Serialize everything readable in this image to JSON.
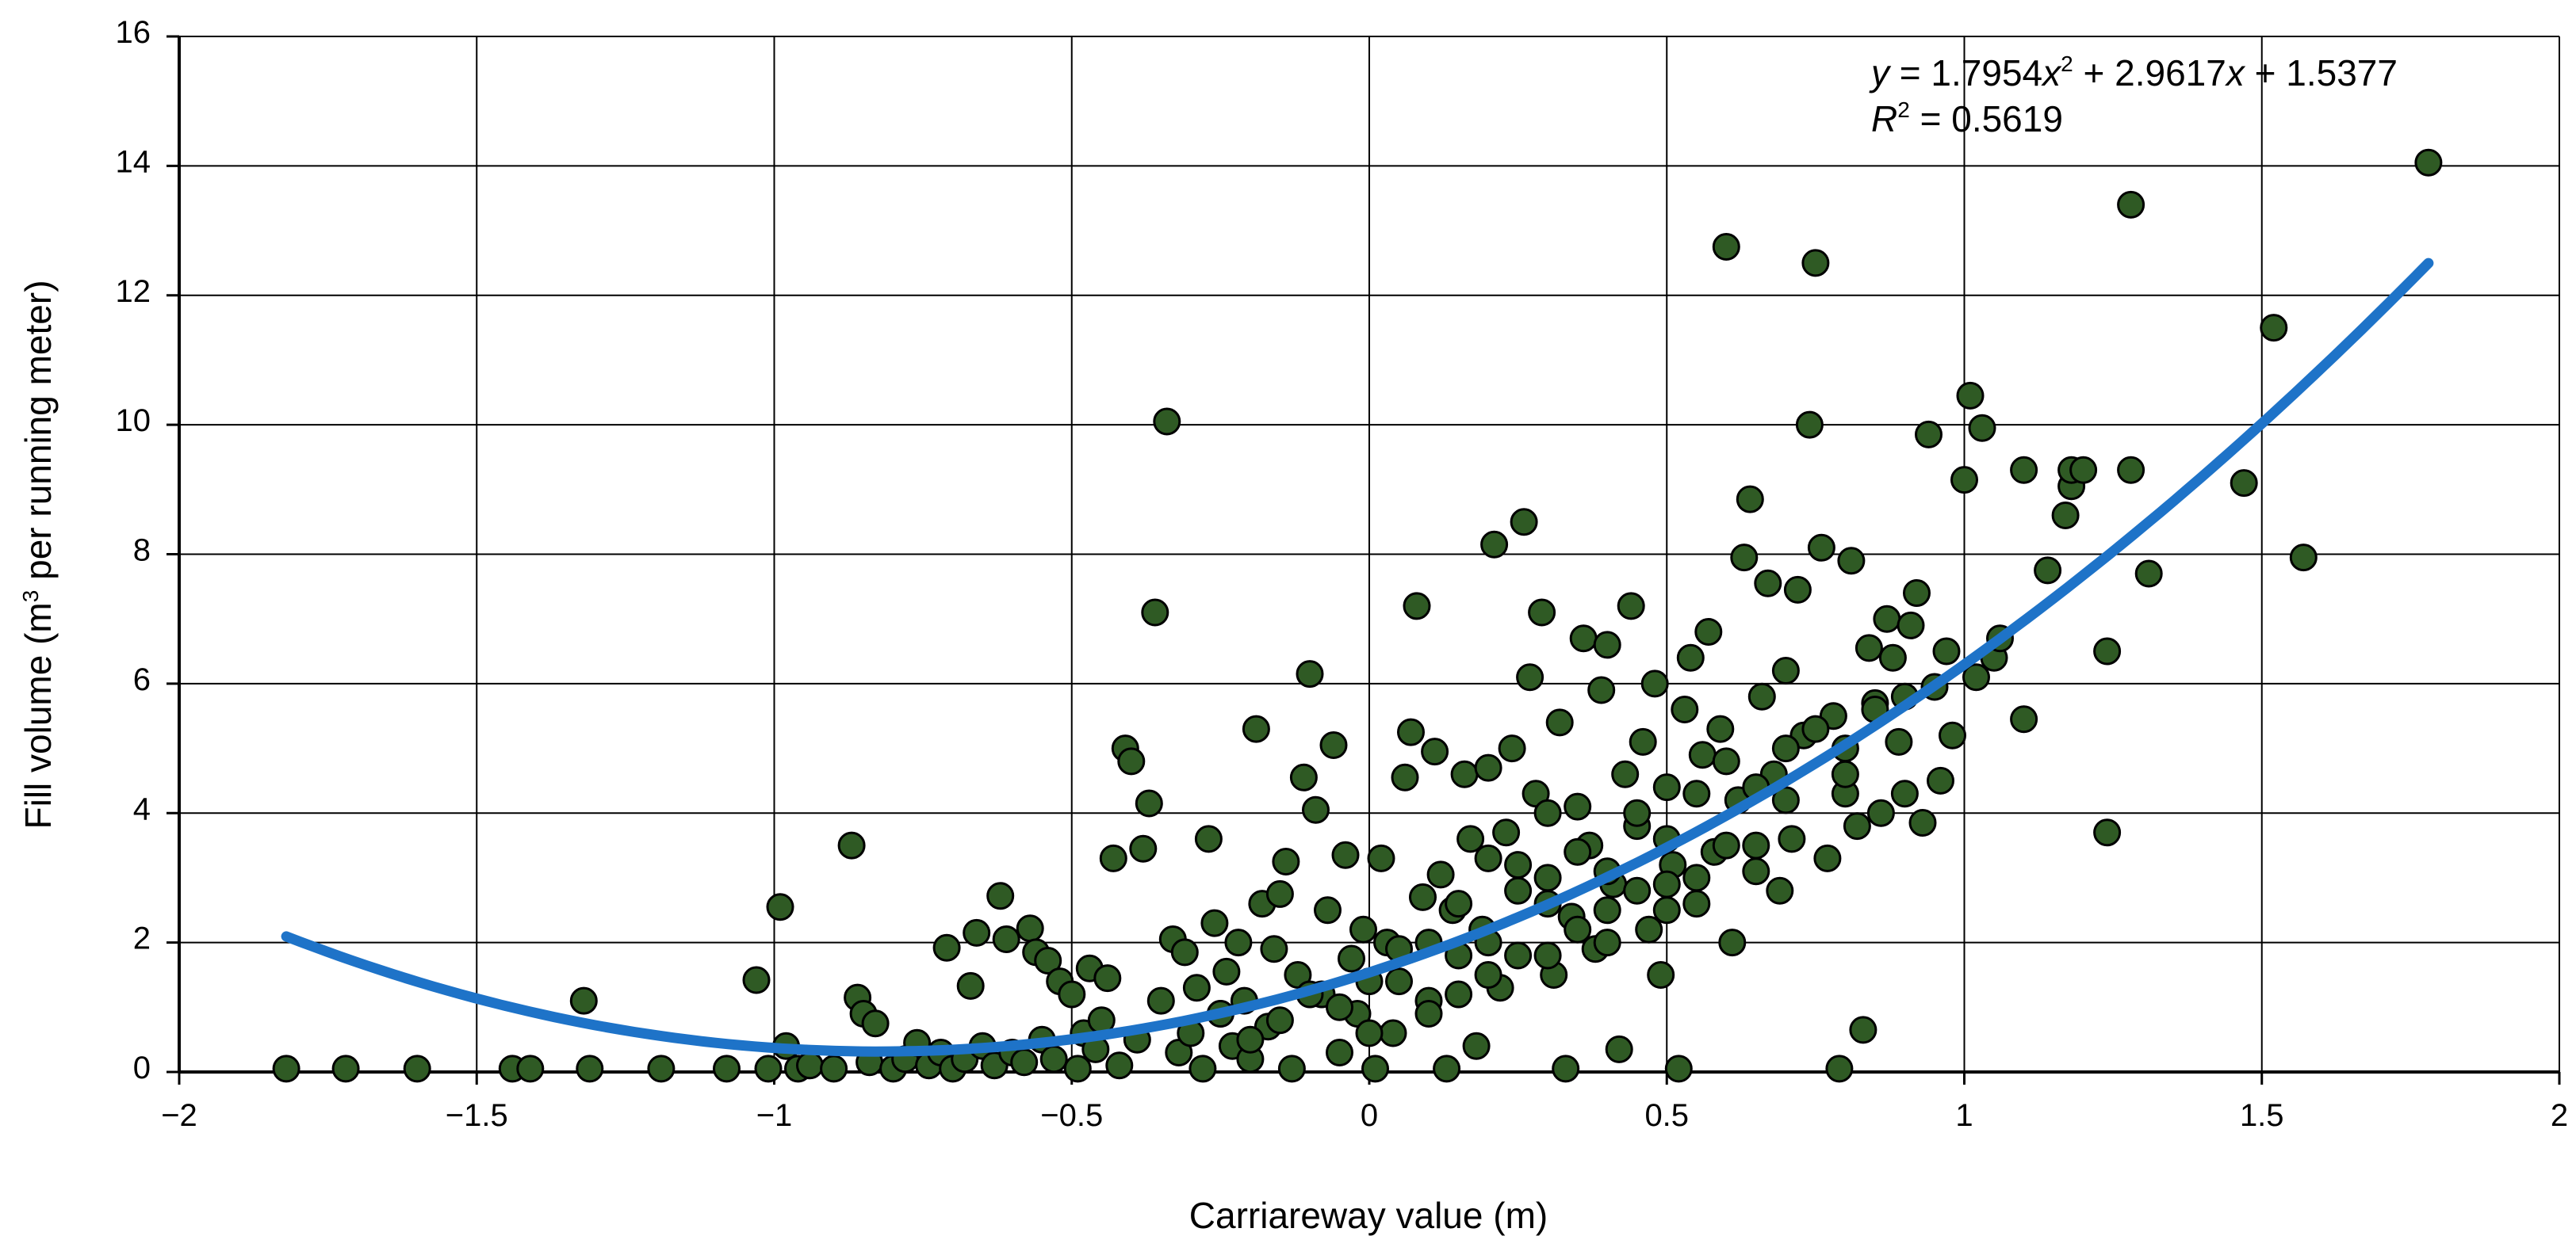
{
  "chart_data": {
    "type": "scatter",
    "title": "",
    "xlabel": "Carriareway value (m)",
    "ylabel_parts": [
      "Fill volume (m",
      "3",
      " per running meter)"
    ],
    "xlim": [
      -2,
      2
    ],
    "ylim": [
      0,
      16
    ],
    "x_ticks": [
      -2,
      -1.5,
      -1,
      -0.5,
      0,
      0.5,
      1,
      1.5,
      2
    ],
    "x_tick_labels": [
      "−2",
      "−1.5",
      "−1",
      "−0.5",
      "0",
      "0.5",
      "1",
      "1.5",
      "2"
    ],
    "y_ticks": [
      0,
      2,
      4,
      6,
      8,
      10,
      12,
      14,
      16
    ],
    "y_tick_labels": [
      "0",
      "2",
      "4",
      "6",
      "8",
      "10",
      "12",
      "14",
      "16"
    ],
    "grid": true,
    "legend": "none",
    "colors": {
      "points": "#2f5a24",
      "trendline": "#1e73c8"
    },
    "trendline": {
      "type": "polynomial",
      "coefficients": [
        1.7954,
        2.9617,
        1.5377
      ],
      "x_range": [
        -1.82,
        1.78
      ],
      "equation_parts": [
        "y",
        " = 1.7954",
        "x",
        "2",
        " + 2.9617",
        "x",
        " + 1.5377"
      ],
      "r2_parts": [
        "R",
        "2",
        " = 0.5619"
      ]
    },
    "points": [
      [
        -1.82,
        0.05
      ],
      [
        -1.72,
        0.05
      ],
      [
        -1.6,
        0.05
      ],
      [
        -1.44,
        0.05
      ],
      [
        -1.41,
        0.05
      ],
      [
        -1.32,
        1.1
      ],
      [
        -1.31,
        0.05
      ],
      [
        -1.19,
        0.05
      ],
      [
        -1.08,
        0.05
      ],
      [
        -1.03,
        1.42
      ],
      [
        -1.01,
        0.05
      ],
      [
        -0.99,
        2.55
      ],
      [
        -0.98,
        0.4
      ],
      [
        -0.96,
        0.05
      ],
      [
        -0.94,
        0.1
      ],
      [
        -0.9,
        0.05
      ],
      [
        -0.87,
        3.5
      ],
      [
        -0.86,
        1.15
      ],
      [
        -0.85,
        0.9
      ],
      [
        -0.84,
        0.15
      ],
      [
        -0.83,
        0.75
      ],
      [
        -0.8,
        0.05
      ],
      [
        -0.78,
        0.2
      ],
      [
        -0.76,
        0.45
      ],
      [
        -0.74,
        0.1
      ],
      [
        -0.72,
        0.3
      ],
      [
        -0.71,
        1.92
      ],
      [
        -0.7,
        0.05
      ],
      [
        -0.68,
        0.2
      ],
      [
        -0.67,
        1.33
      ],
      [
        -0.66,
        2.15
      ],
      [
        -0.65,
        0.4
      ],
      [
        -0.63,
        0.1
      ],
      [
        -0.62,
        2.72
      ],
      [
        -0.61,
        2.05
      ],
      [
        -0.6,
        0.3
      ],
      [
        -0.58,
        0.15
      ],
      [
        -0.57,
        2.22
      ],
      [
        -0.56,
        1.85
      ],
      [
        -0.55,
        0.5
      ],
      [
        -0.54,
        1.72
      ],
      [
        -0.53,
        0.2
      ],
      [
        -0.52,
        1.4
      ],
      [
        -0.5,
        1.2
      ],
      [
        -0.49,
        0.05
      ],
      [
        -0.48,
        0.6
      ],
      [
        -0.47,
        1.6
      ],
      [
        -0.46,
        0.35
      ],
      [
        -0.45,
        0.8
      ],
      [
        -0.44,
        1.45
      ],
      [
        -0.43,
        3.3
      ],
      [
        -0.42,
        0.1
      ],
      [
        -0.41,
        5.0
      ],
      [
        -0.4,
        4.8
      ],
      [
        -0.39,
        0.5
      ],
      [
        -0.38,
        3.45
      ],
      [
        -0.37,
        4.15
      ],
      [
        -0.36,
        7.1
      ],
      [
        -0.35,
        1.1
      ],
      [
        -0.34,
        10.05
      ],
      [
        -0.33,
        2.05
      ],
      [
        -0.32,
        0.3
      ],
      [
        -0.31,
        1.85
      ],
      [
        -0.3,
        0.6
      ],
      [
        -0.29,
        1.3
      ],
      [
        -0.28,
        0.05
      ],
      [
        -0.27,
        3.6
      ],
      [
        -0.26,
        2.3
      ],
      [
        -0.25,
        0.9
      ],
      [
        -0.24,
        1.55
      ],
      [
        -0.23,
        0.4
      ],
      [
        -0.22,
        2.0
      ],
      [
        -0.21,
        1.1
      ],
      [
        -0.2,
        0.2
      ],
      [
        -0.19,
        5.3
      ],
      [
        -0.18,
        2.6
      ],
      [
        -0.17,
        0.7
      ],
      [
        -0.16,
        1.9
      ],
      [
        -0.15,
        2.75
      ],
      [
        -0.14,
        3.25
      ],
      [
        -0.13,
        0.05
      ],
      [
        -0.12,
        1.5
      ],
      [
        -0.11,
        4.55
      ],
      [
        -0.1,
        6.15
      ],
      [
        -0.09,
        4.05
      ],
      [
        -0.08,
        1.2
      ],
      [
        -0.07,
        2.5
      ],
      [
        -0.06,
        5.05
      ],
      [
        -0.05,
        0.3
      ],
      [
        -0.04,
        3.35
      ],
      [
        -0.03,
        1.75
      ],
      [
        -0.02,
        0.9
      ],
      [
        -0.01,
        2.2
      ],
      [
        0.0,
        1.4
      ],
      [
        0.01,
        0.05
      ],
      [
        0.02,
        3.3
      ],
      [
        0.03,
        2.0
      ],
      [
        0.04,
        0.6
      ],
      [
        0.05,
        1.9
      ],
      [
        0.06,
        4.55
      ],
      [
        0.07,
        5.25
      ],
      [
        0.08,
        7.2
      ],
      [
        0.09,
        2.7
      ],
      [
        0.1,
        1.1
      ],
      [
        0.11,
        4.95
      ],
      [
        0.12,
        3.05
      ],
      [
        0.13,
        0.05
      ],
      [
        0.14,
        2.5
      ],
      [
        0.15,
        1.8
      ],
      [
        0.16,
        4.6
      ],
      [
        0.17,
        3.6
      ],
      [
        0.18,
        0.4
      ],
      [
        0.19,
        2.2
      ],
      [
        0.2,
        4.7
      ],
      [
        0.21,
        8.15
      ],
      [
        0.22,
        1.3
      ],
      [
        0.23,
        3.7
      ],
      [
        0.24,
        5.0
      ],
      [
        0.25,
        2.8
      ],
      [
        0.26,
        8.5
      ],
      [
        0.27,
        6.1
      ],
      [
        0.28,
        4.3
      ],
      [
        0.29,
        7.1
      ],
      [
        0.3,
        3.0
      ],
      [
        0.31,
        1.5
      ],
      [
        0.32,
        5.4
      ],
      [
        0.33,
        0.05
      ],
      [
        0.34,
        2.4
      ],
      [
        0.35,
        4.1
      ],
      [
        0.36,
        6.7
      ],
      [
        0.37,
        3.5
      ],
      [
        0.38,
        1.9
      ],
      [
        0.39,
        5.9
      ],
      [
        0.4,
        6.6
      ],
      [
        0.41,
        2.9
      ],
      [
        0.42,
        0.35
      ],
      [
        0.43,
        4.6
      ],
      [
        0.44,
        7.2
      ],
      [
        0.45,
        3.8
      ],
      [
        0.46,
        5.1
      ],
      [
        0.47,
        2.2
      ],
      [
        0.48,
        6.0
      ],
      [
        0.49,
        1.5
      ],
      [
        0.5,
        4.4
      ],
      [
        0.51,
        3.2
      ],
      [
        0.52,
        0.05
      ],
      [
        0.53,
        5.6
      ],
      [
        0.54,
        6.4
      ],
      [
        0.55,
        2.6
      ],
      [
        0.56,
        4.9
      ],
      [
        0.57,
        6.8
      ],
      [
        0.58,
        3.4
      ],
      [
        0.59,
        5.3
      ],
      [
        0.6,
        12.75
      ],
      [
        0.61,
        2.0
      ],
      [
        0.62,
        4.2
      ],
      [
        0.63,
        7.95
      ],
      [
        0.64,
        8.85
      ],
      [
        0.65,
        3.1
      ],
      [
        0.66,
        5.8
      ],
      [
        0.67,
        7.55
      ],
      [
        0.68,
        4.6
      ],
      [
        0.69,
        2.8
      ],
      [
        0.7,
        6.2
      ],
      [
        0.71,
        3.6
      ],
      [
        0.72,
        7.45
      ],
      [
        0.73,
        5.2
      ],
      [
        0.74,
        10.0
      ],
      [
        0.75,
        12.5
      ],
      [
        0.76,
        8.1
      ],
      [
        0.77,
        3.3
      ],
      [
        0.78,
        5.5
      ],
      [
        0.79,
        0.05
      ],
      [
        0.8,
        4.3
      ],
      [
        0.81,
        7.9
      ],
      [
        0.82,
        3.8
      ],
      [
        0.83,
        0.65
      ],
      [
        0.84,
        6.55
      ],
      [
        0.85,
        5.7
      ],
      [
        0.86,
        4.0
      ],
      [
        0.87,
        7.0
      ],
      [
        0.88,
        6.4
      ],
      [
        0.89,
        5.1
      ],
      [
        0.9,
        4.3
      ],
      [
        0.91,
        6.9
      ],
      [
        0.92,
        7.4
      ],
      [
        0.93,
        3.85
      ],
      [
        0.94,
        9.85
      ],
      [
        0.95,
        5.95
      ],
      [
        0.96,
        4.5
      ],
      [
        0.97,
        6.5
      ],
      [
        0.98,
        5.2
      ],
      [
        1.0,
        9.15
      ],
      [
        1.01,
        10.45
      ],
      [
        1.02,
        6.1
      ],
      [
        1.03,
        9.95
      ],
      [
        1.05,
        6.4
      ],
      [
        1.06,
        6.7
      ],
      [
        1.1,
        9.3
      ],
      [
        1.1,
        5.45
      ],
      [
        1.14,
        7.75
      ],
      [
        1.17,
        8.6
      ],
      [
        1.18,
        9.05
      ],
      [
        1.18,
        9.3
      ],
      [
        1.2,
        9.3
      ],
      [
        1.24,
        6.5
      ],
      [
        1.24,
        3.7
      ],
      [
        1.28,
        9.3
      ],
      [
        1.28,
        13.4
      ],
      [
        1.31,
        7.7
      ],
      [
        1.47,
        9.1
      ],
      [
        1.52,
        11.5
      ],
      [
        1.57,
        7.95
      ],
      [
        1.78,
        14.05
      ],
      [
        -0.15,
        0.8
      ],
      [
        -0.1,
        1.2
      ],
      [
        -0.05,
        1.0
      ],
      [
        0.05,
        1.4
      ],
      [
        0.1,
        2.0
      ],
      [
        0.15,
        2.6
      ],
      [
        0.2,
        2.0
      ],
      [
        0.25,
        3.2
      ],
      [
        0.3,
        2.6
      ],
      [
        0.35,
        3.4
      ],
      [
        0.4,
        3.1
      ],
      [
        0.45,
        4.0
      ],
      [
        0.5,
        3.6
      ],
      [
        0.55,
        4.3
      ],
      [
        0.6,
        4.8
      ],
      [
        0.65,
        4.4
      ],
      [
        0.7,
        5.0
      ],
      [
        0.75,
        5.3
      ],
      [
        0.8,
        5.0
      ],
      [
        0.85,
        5.6
      ],
      [
        0.9,
        5.8
      ],
      [
        0.2,
        3.3
      ],
      [
        0.3,
        4.0
      ],
      [
        0.4,
        2.5
      ],
      [
        0.5,
        2.5
      ],
      [
        0.6,
        3.5
      ],
      [
        0.7,
        4.2
      ],
      [
        0.8,
        4.6
      ],
      [
        0.15,
        1.2
      ],
      [
        0.25,
        1.8
      ],
      [
        0.35,
        2.2
      ],
      [
        0.45,
        2.8
      ],
      [
        0.55,
        3.0
      ],
      [
        0.65,
        3.5
      ],
      [
        -0.2,
        0.5
      ],
      [
        -0.25,
        0.9
      ],
      [
        0.0,
        0.6
      ],
      [
        0.1,
        0.9
      ],
      [
        0.2,
        1.5
      ],
      [
        0.3,
        1.8
      ],
      [
        0.4,
        2.0
      ],
      [
        0.5,
        2.9
      ]
    ]
  }
}
